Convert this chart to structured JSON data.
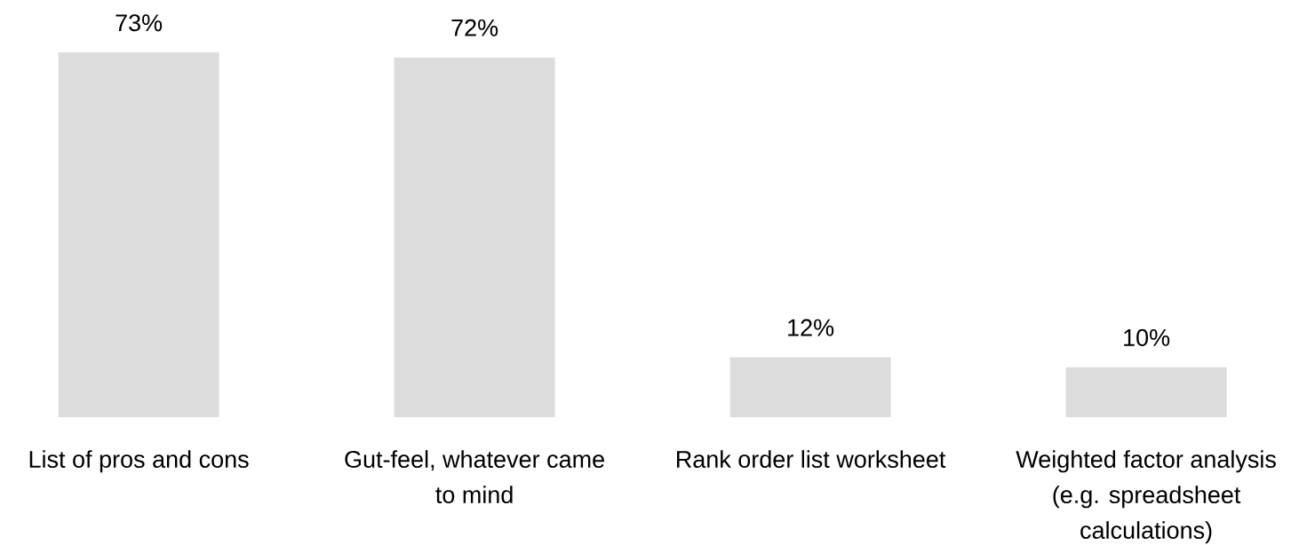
{
  "chart_data": {
    "type": "bar",
    "categories": [
      "List of pros and cons",
      "Gut-feel, whatever came to mind",
      "Rank order list worksheet",
      "Weighted factor analysis (e.g. spreadsheet calculations)"
    ],
    "values": [
      73,
      72,
      12,
      10
    ],
    "value_labels": [
      "73%",
      "72%",
      "12%",
      "10%"
    ],
    "color": "#dcdcdc"
  }
}
